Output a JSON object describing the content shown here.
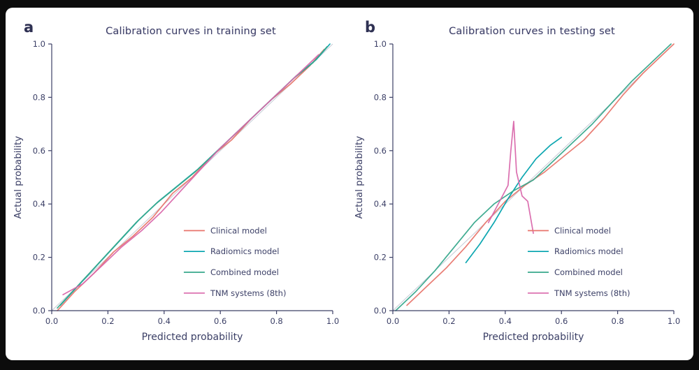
{
  "chart_data": [
    {
      "type": "line",
      "panel_label": "a",
      "title": "Calibration curves in training set",
      "xlabel": "Predicted probability",
      "ylabel": "Actual probability",
      "xlim": [
        0,
        1
      ],
      "ylim": [
        0,
        1
      ],
      "xticks": [
        0,
        0.2,
        0.4,
        0.6,
        0.8,
        1.0
      ],
      "yticks": [
        0,
        0.2,
        0.4,
        0.6,
        0.8,
        1.0
      ],
      "grid": false,
      "reference_diagonal": true,
      "legend_position": "lower right",
      "legend": {
        "x": 0.47,
        "y": 0.3,
        "dy": 0.078
      },
      "series": [
        {
          "name": "Clinical model",
          "color": "#e8766d",
          "x": [
            0.02,
            0.08,
            0.15,
            0.22,
            0.29,
            0.36,
            0.43,
            0.5,
            0.57,
            0.64,
            0.71,
            0.78,
            0.85,
            0.92,
            0.97
          ],
          "y": [
            0.0,
            0.07,
            0.14,
            0.22,
            0.28,
            0.35,
            0.44,
            0.5,
            0.58,
            0.64,
            0.72,
            0.79,
            0.85,
            0.92,
            0.98
          ]
        },
        {
          "name": "Radiomics model",
          "color": "#00a2ad",
          "x": [
            0.03,
            0.1,
            0.17,
            0.24,
            0.31,
            0.38,
            0.45,
            0.52,
            0.59,
            0.66,
            0.73,
            0.8,
            0.87,
            0.94,
            0.99
          ],
          "y": [
            0.02,
            0.1,
            0.18,
            0.26,
            0.34,
            0.41,
            0.47,
            0.53,
            0.6,
            0.67,
            0.74,
            0.81,
            0.88,
            0.94,
            1.0
          ]
        },
        {
          "name": "Combined model",
          "color": "#37a88c",
          "x": [
            0.02,
            0.09,
            0.16,
            0.23,
            0.3,
            0.37,
            0.44,
            0.51,
            0.58,
            0.65,
            0.72,
            0.79,
            0.86,
            0.93,
            0.98
          ],
          "y": [
            0.01,
            0.09,
            0.17,
            0.25,
            0.33,
            0.4,
            0.46,
            0.52,
            0.59,
            0.66,
            0.73,
            0.8,
            0.87,
            0.93,
            0.99
          ]
        },
        {
          "name": "TNM systems (8th)",
          "color": "#d967ab",
          "x": [
            0.04,
            0.11,
            0.18,
            0.25,
            0.32,
            0.39,
            0.46,
            0.53,
            0.6,
            0.67,
            0.74,
            0.81,
            0.88,
            0.95
          ],
          "y": [
            0.06,
            0.1,
            0.17,
            0.24,
            0.3,
            0.37,
            0.45,
            0.53,
            0.61,
            0.68,
            0.75,
            0.82,
            0.89,
            0.96
          ]
        }
      ]
    },
    {
      "type": "line",
      "panel_label": "b",
      "title": "Calibration curves in testing set",
      "xlabel": "Predicted probability",
      "ylabel": "Actual probability",
      "xlim": [
        0,
        1
      ],
      "ylim": [
        0,
        1
      ],
      "xticks": [
        0,
        0.2,
        0.4,
        0.6,
        0.8,
        1.0
      ],
      "yticks": [
        0,
        0.2,
        0.4,
        0.6,
        0.8,
        1.0
      ],
      "grid": false,
      "reference_diagonal": true,
      "legend_position": "lower right",
      "legend": {
        "x": 0.48,
        "y": 0.3,
        "dy": 0.078
      },
      "series": [
        {
          "name": "Clinical model",
          "color": "#e8766d",
          "x": [
            0.05,
            0.12,
            0.19,
            0.26,
            0.33,
            0.4,
            0.47,
            0.54,
            0.61,
            0.68,
            0.75,
            0.82,
            0.89,
            0.96,
            1.0
          ],
          "y": [
            0.02,
            0.09,
            0.16,
            0.24,
            0.33,
            0.41,
            0.47,
            0.52,
            0.58,
            0.64,
            0.72,
            0.81,
            0.89,
            0.96,
            1.0
          ]
        },
        {
          "name": "Radiomics model",
          "color": "#00a2ad",
          "x": [
            0.26,
            0.31,
            0.36,
            0.41,
            0.46,
            0.51,
            0.56,
            0.6
          ],
          "y": [
            0.18,
            0.25,
            0.33,
            0.42,
            0.5,
            0.57,
            0.62,
            0.65
          ]
        },
        {
          "name": "Combined model",
          "color": "#37a88c",
          "x": [
            0.01,
            0.08,
            0.15,
            0.22,
            0.29,
            0.36,
            0.43,
            0.5,
            0.57,
            0.64,
            0.71,
            0.78,
            0.85,
            0.92,
            0.99
          ],
          "y": [
            0.0,
            0.07,
            0.15,
            0.24,
            0.33,
            0.4,
            0.45,
            0.49,
            0.56,
            0.63,
            0.7,
            0.78,
            0.86,
            0.93,
            1.0
          ]
        },
        {
          "name": "TNM systems (8th)",
          "color": "#d967ab",
          "x": [
            0.34,
            0.38,
            0.41,
            0.42,
            0.43,
            0.44,
            0.46,
            0.48,
            0.5
          ],
          "y": [
            0.33,
            0.41,
            0.47,
            0.6,
            0.71,
            0.52,
            0.43,
            0.41,
            0.29
          ]
        }
      ]
    }
  ]
}
